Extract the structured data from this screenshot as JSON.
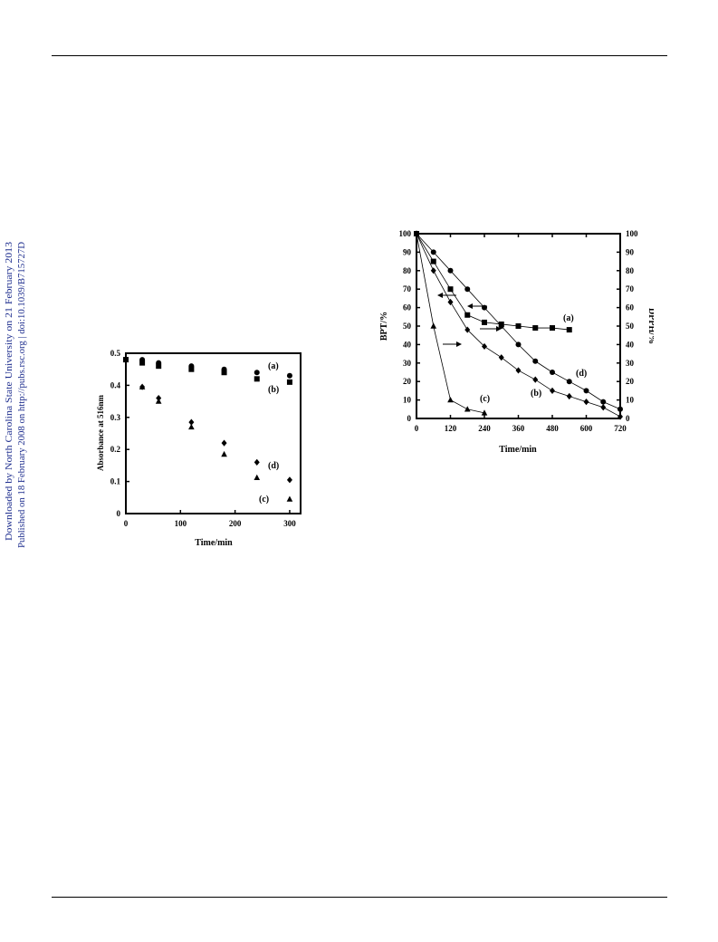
{
  "sidebar": {
    "line1": "Downloaded by North Carolina State University on 21 February 2013",
    "line2": "Published on 18 February 2008 on http://pubs.rsc.org | doi:10.1039/B715727D"
  },
  "chart_data": [
    {
      "type": "scatter",
      "title": "",
      "xlabel": "Time/min",
      "ylabel": "Absorbance at 516nm",
      "xlim": [
        0,
        320
      ],
      "ylim": [
        0,
        0.5
      ],
      "xticks": [
        "0",
        "100",
        "200",
        "300"
      ],
      "yticks": [
        "0",
        "0.1",
        "0.2",
        "0.3",
        "0.4",
        "0.5"
      ],
      "grid": false,
      "series": [
        {
          "name": "(a)",
          "marker": "circle",
          "x": [
            0,
            30,
            60,
            120,
            180,
            240,
            300
          ],
          "y": [
            0.48,
            0.48,
            0.47,
            0.46,
            0.45,
            0.44,
            0.43
          ]
        },
        {
          "name": "(b)",
          "marker": "square",
          "x": [
            0,
            30,
            60,
            120,
            180,
            240,
            300
          ],
          "y": [
            0.48,
            0.47,
            0.46,
            0.45,
            0.44,
            0.42,
            0.41
          ]
        },
        {
          "name": "(d)",
          "marker": "diamond",
          "x": [
            0,
            30,
            60,
            120,
            180,
            240,
            300
          ],
          "y": [
            0.48,
            0.395,
            0.36,
            0.285,
            0.22,
            0.16,
            0.105
          ]
        },
        {
          "name": "(c)",
          "marker": "triangle",
          "x": [
            0,
            30,
            60,
            120,
            180,
            240,
            300
          ],
          "y": [
            0.48,
            0.395,
            0.35,
            0.27,
            0.185,
            0.112,
            0.045
          ]
        }
      ]
    },
    {
      "type": "line",
      "title": "",
      "xlabel": "Time/min",
      "ylabel": "BPT/%",
      "y2label": "DPPH/%",
      "xlim": [
        0,
        720
      ],
      "ylim": [
        0,
        100
      ],
      "xticks": [
        "0",
        "120",
        "240",
        "360",
        "480",
        "600",
        "720"
      ],
      "yticks": [
        "0",
        "10",
        "20",
        "30",
        "40",
        "50",
        "60",
        "70",
        "80",
        "90",
        "100"
      ],
      "y2ticks": [
        "0",
        "10",
        "20",
        "30",
        "40",
        "50",
        "60",
        "70",
        "80",
        "90",
        "100"
      ],
      "grid": false,
      "series": [
        {
          "name": "(a)",
          "marker": "square",
          "axis": "left",
          "x": [
            0,
            60,
            120,
            180,
            240,
            300,
            360,
            420,
            480,
            540
          ],
          "y": [
            100,
            85,
            70,
            56,
            52,
            51,
            50,
            49,
            49,
            48
          ]
        },
        {
          "name": "(d)",
          "marker": "circle",
          "axis": "right",
          "x": [
            0,
            60,
            120,
            180,
            240,
            300,
            360,
            420,
            480,
            540,
            600,
            660,
            720
          ],
          "y": [
            100,
            90,
            80,
            70,
            60,
            50,
            40,
            31,
            25,
            20,
            15,
            9,
            5
          ]
        },
        {
          "name": "(b)",
          "marker": "diamond",
          "axis": "right",
          "x": [
            0,
            60,
            120,
            180,
            240,
            300,
            360,
            420,
            480,
            540,
            600,
            660,
            720
          ],
          "y": [
            100,
            80,
            63,
            48,
            39,
            33,
            26,
            21,
            15,
            12,
            9,
            6,
            1
          ]
        },
        {
          "name": "(c)",
          "marker": "triangle",
          "axis": "left",
          "x": [
            0,
            60,
            120,
            180,
            240
          ],
          "y": [
            100,
            50,
            10,
            5,
            3
          ]
        }
      ]
    }
  ]
}
